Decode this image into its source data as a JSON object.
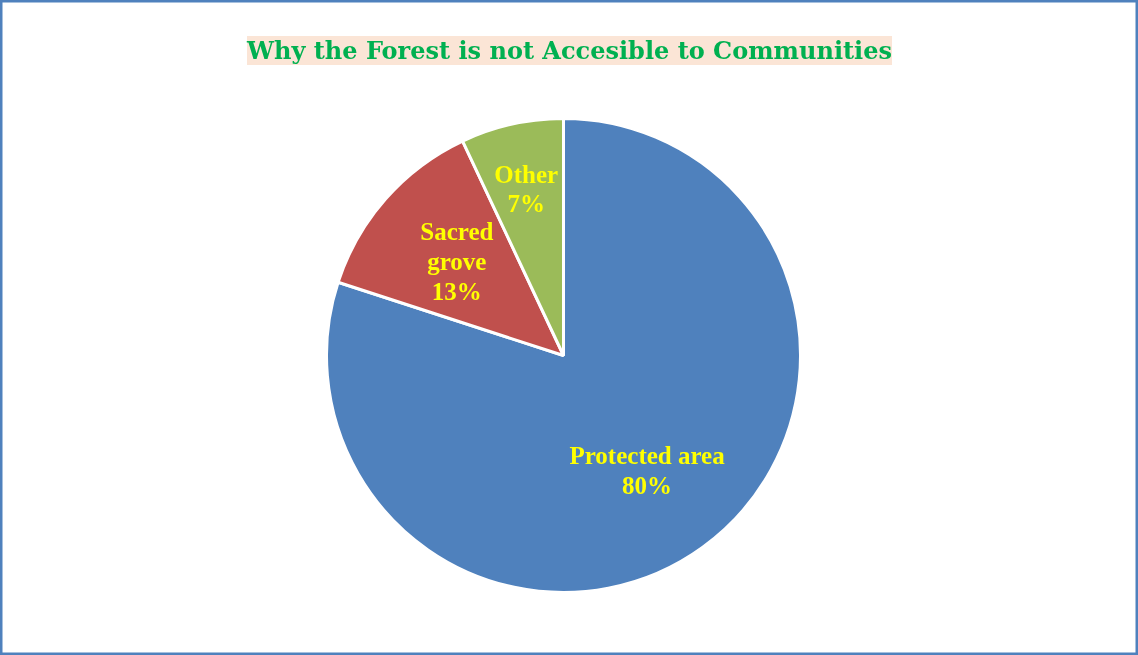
{
  "chart_data": {
    "type": "pie",
    "title": "Why the Forest is not Accesible to Communities",
    "categories": [
      "Protected area",
      "Sacred grove",
      "Other"
    ],
    "values": [
      80,
      13,
      7
    ],
    "value_labels": [
      "80%",
      "13%",
      "7%"
    ],
    "colors": [
      "#4f81bd",
      "#c0504d",
      "#9bbb59"
    ]
  }
}
